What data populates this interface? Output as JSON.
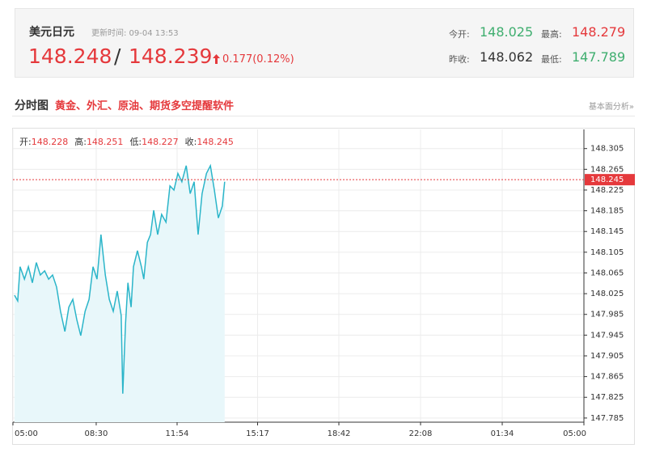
{
  "header": {
    "name": "美元日元",
    "update": "更新时间: 09-04 13:53",
    "bid": "148.248",
    "separator": "/",
    "ask": "148.239",
    "change": "0.177(0.12%)",
    "stats": [
      {
        "label": "今开:",
        "value": "148.025"
      },
      {
        "label": "最高:",
        "value": "148.279"
      },
      {
        "label": "昨收:",
        "value": "148.062"
      },
      {
        "label": "最低:",
        "value": "147.789"
      }
    ]
  },
  "section": {
    "title": "分时图",
    "promo": "黄金、外汇、原油、期货多空提醒软件",
    "link": "基本面分析»"
  },
  "chart_data": {
    "type": "line",
    "color": "#2bb5c9",
    "fill": "#e8f7fa",
    "grid": true,
    "info": [
      {
        "label": "开:",
        "value": 148.228
      },
      {
        "label": "高:",
        "value": 148.251
      },
      {
        "label": "低:",
        "value": 148.227
      },
      {
        "label": "收:",
        "value": 148.245
      }
    ],
    "price_line": 148.245,
    "x": [
      4,
      12,
      18,
      29,
      39,
      49,
      59,
      69,
      80,
      90,
      100,
      110,
      120,
      131,
      141,
      151,
      161,
      171,
      182,
      192,
      202,
      212,
      222,
      233,
      243,
      253,
      263,
      273,
      277,
      284,
      290,
      298,
      304,
      314,
      324,
      330,
      339,
      347,
      355,
      365,
      375,
      386,
      396,
      406,
      416,
      426,
      437,
      447,
      457,
      467,
      477,
      488,
      498,
      508,
      518,
      528,
      534
    ],
    "values": [
      148.022,
      148.011,
      148.077,
      148.053,
      148.077,
      148.046,
      148.085,
      148.061,
      148.069,
      148.053,
      148.061,
      148.038,
      147.991,
      147.952,
      147.999,
      148.014,
      147.975,
      147.944,
      147.991,
      148.014,
      148.077,
      148.053,
      148.139,
      148.061,
      148.014,
      147.991,
      148.03,
      147.983,
      147.832,
      147.968,
      148.046,
      147.999,
      148.077,
      148.108,
      148.077,
      148.053,
      148.124,
      148.139,
      148.186,
      148.139,
      148.178,
      148.163,
      148.233,
      148.225,
      148.257,
      148.241,
      148.272,
      148.218,
      148.241,
      148.139,
      148.218,
      148.257,
      148.272,
      148.225,
      148.171,
      148.194,
      148.241
    ],
    "xlim": [
      0,
      1440
    ],
    "xticks": [
      {
        "value": 0,
        "label": "05:00"
      },
      {
        "value": 210,
        "label": "08:30"
      },
      {
        "value": 414,
        "label": "11:54"
      },
      {
        "value": 617,
        "label": "15:17"
      },
      {
        "value": 822,
        "label": "18:42"
      },
      {
        "value": 1028,
        "label": "22:08"
      },
      {
        "value": 1234,
        "label": "01:34"
      },
      {
        "value": 1440,
        "label": "05:00"
      }
    ],
    "ylim": [
      147.777,
      148.342
    ],
    "yticks": [
      148.305,
      148.265,
      148.225,
      148.185,
      148.145,
      148.105,
      148.065,
      148.025,
      147.985,
      147.945,
      147.905,
      147.865,
      147.825,
      147.785
    ]
  }
}
